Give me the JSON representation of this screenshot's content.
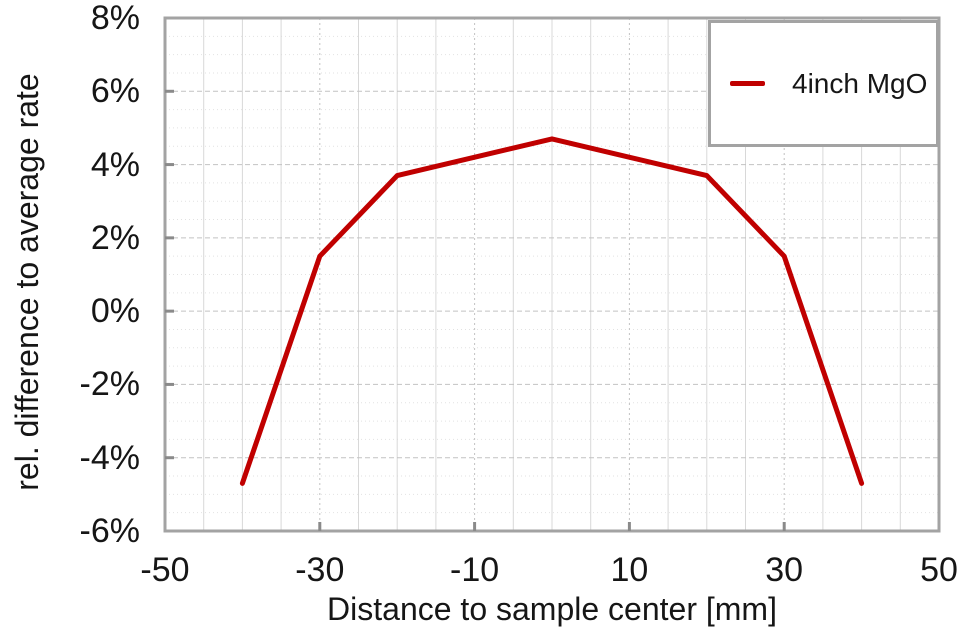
{
  "chart_data": {
    "type": "line",
    "title": "",
    "xlabel": "Distance to sample center [mm]",
    "ylabel": "rel. difference to average rate",
    "xlim": [
      -50,
      50
    ],
    "ylim": [
      -6,
      8
    ],
    "x_major_ticks": [
      -50,
      -30,
      -10,
      10,
      30,
      50
    ],
    "x_tick_labels": [
      "-50",
      "-30",
      "-10",
      "10",
      "30",
      "50"
    ],
    "y_major_ticks": [
      8,
      6,
      4,
      2,
      0,
      -2,
      -4,
      -6
    ],
    "y_tick_labels": [
      "8%",
      "6%",
      "4%",
      "2%",
      "0%",
      "-2%",
      "-4%",
      "-6%"
    ],
    "x_minor_interval": 5,
    "y_minor_interval": 0.5,
    "grid": true,
    "legend_position": "top-right",
    "series": [
      {
        "name": "4inch MgO",
        "color": "#C00000",
        "x": [
          -40,
          -30,
          -20,
          0,
          20,
          30,
          40
        ],
        "y": [
          -4.7,
          1.5,
          3.7,
          4.7,
          3.7,
          1.5,
          -4.7
        ]
      }
    ]
  }
}
